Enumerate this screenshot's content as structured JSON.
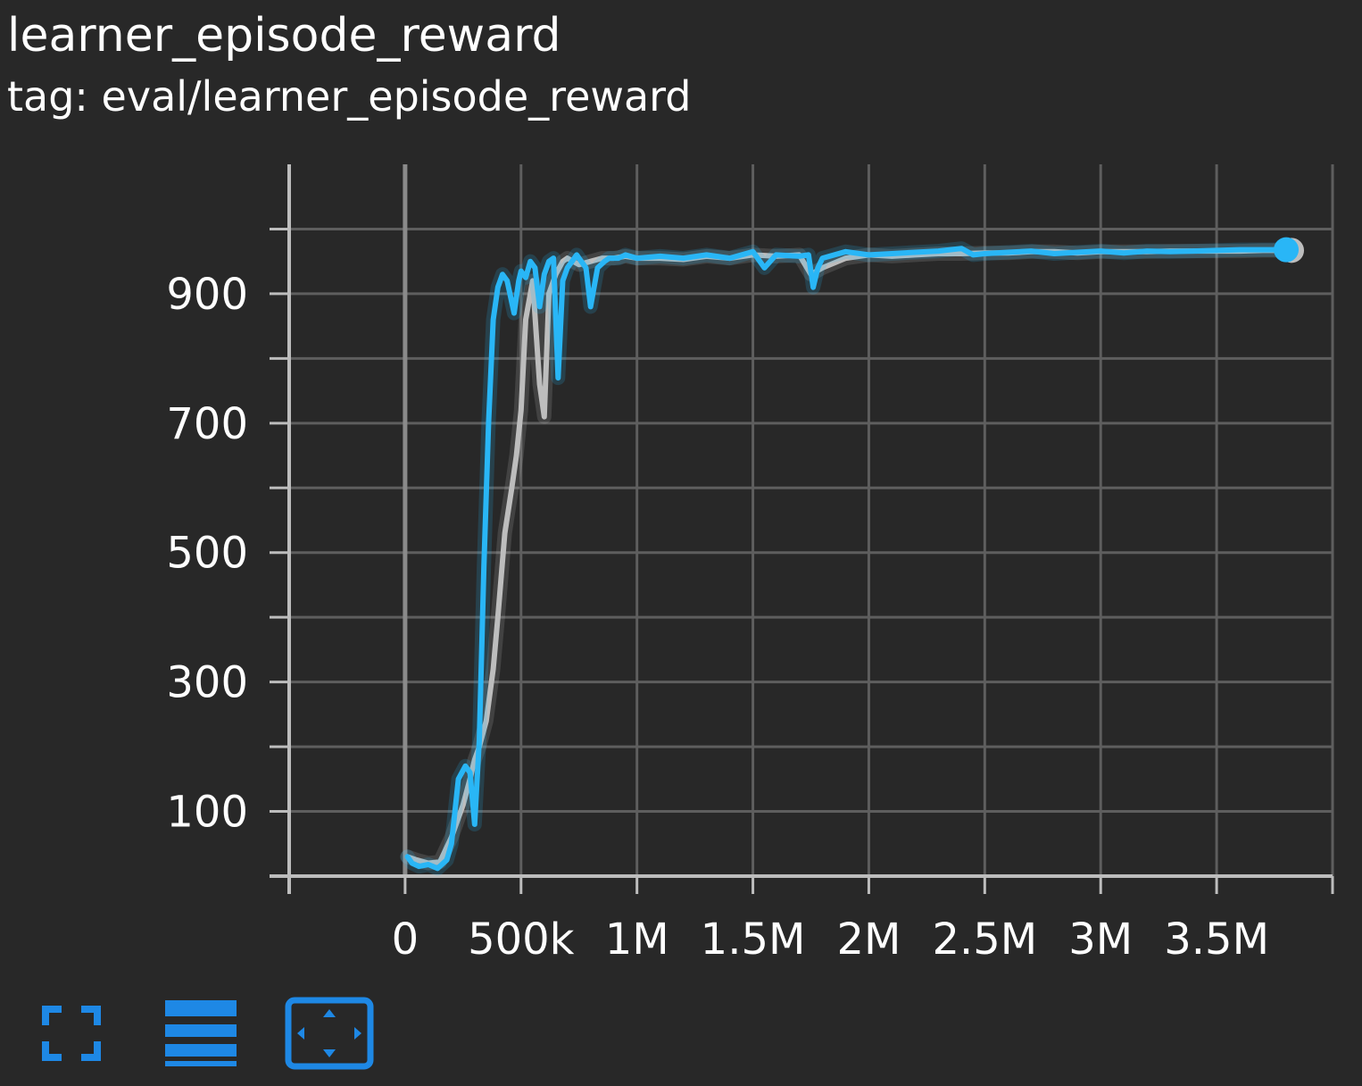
{
  "card": {
    "title": "learner_episode_reward",
    "subtitle": "tag: eval/learner_episode_reward"
  },
  "toolbar": {
    "buttons": [
      {
        "icon": "fullscreen-icon"
      },
      {
        "icon": "toggle-legend-icon"
      },
      {
        "icon": "fit-domain-icon"
      }
    ]
  },
  "colors": {
    "background": "#282828",
    "grid": "#5e5e5e",
    "axis": "#bdbdbd",
    "series_blue": "#29b6f6",
    "series_gray": "#bdbdbd",
    "accent": "#1e88e5"
  },
  "chart_data": {
    "type": "line",
    "title": "learner_episode_reward",
    "xlim": [
      -500000,
      4000000
    ],
    "ylim": [
      0,
      1100
    ],
    "x_ticks": [
      0,
      500000,
      1000000,
      1500000,
      2000000,
      2500000,
      3000000,
      3500000
    ],
    "x_tick_labels": [
      "0",
      "500k",
      "1M",
      "1.5M",
      "2M",
      "2.5M",
      "3M",
      "3.5M"
    ],
    "y_ticks": [
      100,
      300,
      500,
      700,
      900
    ],
    "y_tick_labels": [
      "100",
      "300",
      "500",
      "700",
      "900"
    ],
    "grid": true,
    "series": [
      {
        "color": "#bdbdbd",
        "x": [
          10000,
          50000,
          100000,
          150000,
          200000,
          250000,
          280000,
          300000,
          320000,
          350000,
          380000,
          400000,
          430000,
          460000,
          480000,
          500000,
          520000,
          550000,
          580000,
          600000,
          620000,
          650000,
          680000,
          700000,
          750000,
          800000,
          850000,
          900000,
          950000,
          1000000,
          1100000,
          1200000,
          1300000,
          1400000,
          1500000,
          1600000,
          1700000,
          1750000,
          1800000,
          1900000,
          2000000,
          2100000,
          2200000,
          2300000,
          2400000,
          2500000,
          2600000,
          2700000,
          2800000,
          2900000,
          3000000,
          3100000,
          3200000,
          3300000,
          3400000,
          3500000,
          3600000,
          3700000,
          3800000
        ],
        "y": [
          30,
          25,
          20,
          22,
          60,
          110,
          150,
          180,
          200,
          240,
          320,
          400,
          530,
          600,
          650,
          720,
          860,
          920,
          760,
          710,
          900,
          930,
          950,
          955,
          945,
          950,
          955,
          955,
          958,
          955,
          955,
          953,
          958,
          955,
          960,
          958,
          960,
          930,
          940,
          955,
          960,
          958,
          960,
          962,
          962,
          963,
          963,
          965,
          965,
          963,
          965,
          965,
          965,
          966,
          966,
          966,
          966,
          967,
          967
        ]
      },
      {
        "color": "#29b6f6",
        "x": [
          10000,
          30000,
          60000,
          100000,
          140000,
          180000,
          200000,
          230000,
          260000,
          280000,
          300000,
          320000,
          340000,
          360000,
          380000,
          400000,
          420000,
          440000,
          470000,
          490000,
          500000,
          520000,
          540000,
          560000,
          580000,
          600000,
          620000,
          640000,
          660000,
          680000,
          700000,
          720000,
          740000,
          760000,
          780000,
          800000,
          830000,
          860000,
          880000,
          900000,
          920000,
          950000,
          1000000,
          1100000,
          1200000,
          1300000,
          1400000,
          1500000,
          1550000,
          1600000,
          1700000,
          1740000,
          1760000,
          1780000,
          1800000,
          1900000,
          2000000,
          2100000,
          2200000,
          2300000,
          2400000,
          2450000,
          2500000,
          2600000,
          2700000,
          2800000,
          2900000,
          3000000,
          3100000,
          3200000,
          3300000,
          3400000,
          3500000,
          3600000,
          3700000,
          3800000
        ],
        "y": [
          30,
          20,
          15,
          18,
          12,
          25,
          50,
          150,
          170,
          160,
          80,
          210,
          480,
          700,
          860,
          910,
          930,
          920,
          870,
          920,
          935,
          925,
          950,
          940,
          880,
          930,
          950,
          955,
          770,
          920,
          940,
          950,
          960,
          950,
          940,
          880,
          940,
          950,
          955,
          955,
          955,
          960,
          955,
          958,
          955,
          960,
          955,
          965,
          940,
          960,
          958,
          960,
          910,
          940,
          955,
          965,
          960,
          962,
          964,
          966,
          970,
          960,
          962,
          964,
          966,
          962,
          964,
          966,
          963,
          966,
          965,
          966,
          967,
          968,
          968,
          968
        ]
      }
    ]
  }
}
